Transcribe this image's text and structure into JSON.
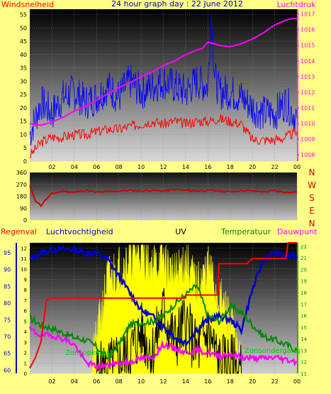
{
  "colors": {
    "page_bg": "#ffff88",
    "wind": "#ff0000",
    "gust": "#0000ff",
    "pressure": "#ff00ff",
    "direction": "#d40000",
    "humidity": "#0000cc",
    "temperature": "#008800",
    "dewpoint": "#ff00ff",
    "rain": "#ff0000",
    "uv": "#ffff00",
    "solar": "#000000"
  },
  "chart_data": [
    {
      "type": "line",
      "title": "24 hour graph day : 22 June 2012",
      "ylabel_left": "Windsnelheid",
      "ylabel_right": "Luchtdruk",
      "x_tick_labels": [
        "02",
        "04",
        "06",
        "08",
        "10",
        "12",
        "14",
        "16",
        "18",
        "20",
        "22",
        "00"
      ],
      "y_left_ticks": [
        "0",
        "5",
        "10",
        "15",
        "20",
        "25",
        "30",
        "35",
        "40",
        "45",
        "50",
        "55"
      ],
      "y_right_ticks": [
        "1008",
        "1009",
        "1010",
        "1011",
        "1012",
        "1013",
        "1014",
        "1015",
        "1016",
        "1017"
      ],
      "ylim_left": [
        0,
        57
      ],
      "ylim_right": [
        1007.6,
        1017.3
      ],
      "xlim_hours": [
        0,
        24
      ],
      "series": [
        {
          "key": "gust",
          "axis": "left",
          "color": "gust",
          "x": [
            0,
            1,
            2,
            3,
            4,
            5,
            6,
            7,
            8,
            9,
            10,
            11,
            12,
            13,
            14,
            15,
            16,
            16.3,
            16.6,
            17,
            18,
            19,
            20,
            21,
            22,
            23,
            24
          ],
          "y": [
            10,
            22,
            18,
            24,
            26,
            22,
            24,
            28,
            24,
            30,
            26,
            28,
            30,
            28,
            26,
            30,
            28,
            56,
            32,
            26,
            26,
            24,
            20,
            18,
            18,
            22,
            16
          ]
        },
        {
          "key": "wind",
          "axis": "left",
          "color": "wind",
          "x": [
            0,
            1,
            2,
            3,
            4,
            5,
            6,
            7,
            8,
            9,
            10,
            11,
            12,
            13,
            14,
            15,
            16,
            17,
            18,
            19,
            20,
            21,
            22,
            23,
            24
          ],
          "y": [
            2,
            7,
            9,
            9,
            10,
            10,
            11,
            12,
            12,
            13,
            14,
            15,
            14,
            15,
            14,
            15,
            15,
            16,
            15,
            14,
            8,
            8,
            8,
            9,
            11
          ]
        },
        {
          "key": "pressure",
          "axis": "right",
          "color": "pressure",
          "x": [
            0,
            1,
            2,
            3,
            4,
            5,
            6,
            7,
            8,
            9,
            10,
            11,
            12,
            13,
            14,
            15,
            15.5,
            16,
            16.5,
            17,
            18,
            19,
            20,
            21,
            22,
            23,
            23.5,
            24
          ],
          "y": [
            1010,
            1009.9,
            1010.1,
            1010.4,
            1010.8,
            1011.1,
            1011.5,
            1011.9,
            1012.3,
            1012.6,
            1013,
            1013.3,
            1013.7,
            1014,
            1014.4,
            1014.7,
            1014.8,
            1015.2,
            1015.1,
            1015,
            1014.9,
            1015.1,
            1015.4,
            1015.8,
            1016.3,
            1016.6,
            1016.7,
            1016.7
          ]
        }
      ]
    },
    {
      "type": "line",
      "ylim": [
        0,
        360
      ],
      "y_ticks": [
        "0",
        "90",
        "180",
        "270",
        "360"
      ],
      "compass_labels": [
        "N",
        "W",
        "S",
        "E",
        "N"
      ],
      "xlim_hours": [
        0,
        24
      ],
      "series": [
        {
          "key": "direction",
          "color": "direction",
          "x": [
            0,
            0.5,
            1,
            1.5,
            2,
            3,
            4,
            5,
            6,
            7,
            8,
            9,
            10,
            11,
            12,
            13,
            14,
            15,
            16,
            17,
            18,
            19,
            20,
            21,
            22,
            23,
            24
          ],
          "y": [
            260,
            150,
            110,
            160,
            200,
            220,
            210,
            225,
            210,
            215,
            220,
            225,
            220,
            225,
            220,
            230,
            225,
            220,
            225,
            220,
            215,
            225,
            220,
            215,
            220,
            210,
            215
          ]
        }
      ]
    },
    {
      "type": "line",
      "labels": {
        "rain": "Regenval",
        "humidity": "Luchtvochtigheid",
        "uv": "UV",
        "temperature": "Temperatuur",
        "dewpoint": "Dauwpunt"
      },
      "annotations": [
        "Zonsopkomst",
        "Zonsondergang"
      ],
      "x_tick_labels": [
        "02",
        "04",
        "06",
        "08",
        "10",
        "12",
        "14",
        "16",
        "18",
        "20",
        "22",
        "00"
      ],
      "y_humidity_ticks": [
        "60",
        "65",
        "70",
        "75",
        "80",
        "85",
        "90",
        "95"
      ],
      "y_rain_ticks": [
        "0",
        "1",
        "2",
        "3",
        "4",
        "5",
        "6",
        "7",
        "8",
        "9",
        "10",
        "11",
        "12"
      ],
      "y_temp_ticks": [
        "11",
        "12",
        "13",
        "14",
        "15",
        "16",
        "17",
        "18",
        "19",
        "20",
        "21",
        "22"
      ],
      "ylim_humidity": [
        59,
        98
      ],
      "ylim_rain": [
        0,
        12.5
      ],
      "ylim_temp": [
        11,
        22.3
      ],
      "xlim_hours": [
        0,
        24
      ],
      "series": [
        {
          "key": "humidity",
          "axis": "humidity",
          "color": "humidity",
          "x": [
            0,
            1,
            2,
            3,
            4,
            5,
            6,
            7,
            8,
            9,
            10,
            11,
            12,
            13,
            14,
            15,
            16,
            17,
            18,
            19,
            20,
            21,
            22,
            23,
            24
          ],
          "y": [
            93,
            95,
            96,
            96,
            96,
            95,
            95,
            93,
            88,
            83,
            78,
            76,
            73,
            70,
            68,
            72,
            75,
            76,
            75,
            72,
            84,
            93,
            95,
            94,
            94
          ]
        },
        {
          "key": "temperature",
          "axis": "temp",
          "color": "temperature",
          "x": [
            0,
            1,
            2,
            3,
            4,
            5,
            6,
            7,
            8,
            9,
            10,
            11,
            12,
            13,
            14,
            15,
            16,
            17,
            18,
            19,
            20,
            21,
            22,
            23,
            24
          ],
          "y": [
            15.8,
            15.2,
            14.9,
            14.5,
            14.1,
            13.9,
            13.3,
            12.3,
            13.5,
            15.2,
            15.4,
            15.5,
            16,
            17,
            17.8,
            18.6,
            16,
            15.5,
            16.8,
            16.3,
            15.2,
            14.2,
            13.9,
            13.5,
            13
          ]
        },
        {
          "key": "dewpoint",
          "axis": "temp",
          "color": "dewpoint",
          "x": [
            0,
            1,
            2,
            3,
            4,
            5,
            6,
            7,
            8,
            9,
            10,
            11,
            12,
            13,
            14,
            15,
            16,
            17,
            18,
            19,
            20,
            21,
            22,
            23,
            24
          ],
          "y": [
            14.8,
            14.3,
            14.3,
            14,
            13.5,
            12,
            11.6,
            11.7,
            11.9,
            12,
            12.3,
            12.3,
            13.5,
            13.2,
            12.8,
            13,
            12.8,
            12.5,
            12.7,
            12.4,
            12.3,
            12.3,
            12.4,
            12.2,
            12
          ]
        },
        {
          "key": "rain",
          "axis": "rain",
          "color": "rain",
          "x": [
            0,
            0.5,
            1,
            1.5,
            2,
            4,
            6,
            8,
            10,
            12,
            13.9,
            14,
            16.9,
            17,
            19,
            19.5,
            20,
            22,
            23,
            23.2,
            24
          ],
          "y": [
            0.5,
            1.5,
            3,
            7,
            7.2,
            7.2,
            7.2,
            7.2,
            7.2,
            7.2,
            7.2,
            7.5,
            7.5,
            10.5,
            10.5,
            10.5,
            11,
            11,
            11,
            12.5,
            12.5
          ]
        },
        {
          "key": "uv",
          "axis": "rain",
          "color": "uv",
          "x": [
            5.5,
            6,
            7,
            8,
            9,
            10,
            11,
            12,
            13,
            14,
            15,
            16,
            17,
            18,
            19
          ],
          "y": [
            0,
            3,
            9,
            10,
            11,
            12,
            10,
            11,
            9,
            11,
            8,
            10,
            7,
            5,
            0
          ]
        },
        {
          "key": "solar",
          "axis": "rain",
          "color": "solar",
          "x": [
            6,
            8,
            9,
            10,
            11,
            12,
            13,
            14,
            15,
            16,
            17,
            18,
            19
          ],
          "y": [
            0,
            1,
            2,
            4,
            2,
            6,
            3,
            5,
            2,
            4,
            1,
            1,
            0
          ]
        }
      ]
    }
  ]
}
